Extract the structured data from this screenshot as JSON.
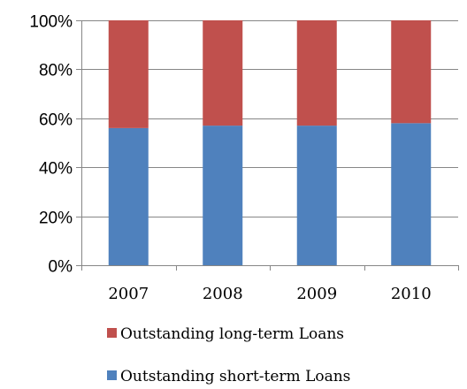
{
  "chart_data": {
    "type": "bar",
    "stacked": true,
    "percent_stacked": true,
    "categories": [
      "2007",
      "2008",
      "2009",
      "2010"
    ],
    "series": [
      {
        "name": "Outstanding short-term Loans",
        "values": [
          56,
          57,
          57,
          58
        ],
        "color": "#4f81bd"
      },
      {
        "name": "Outstanding long-term Loans",
        "values": [
          44,
          43,
          43,
          42
        ],
        "color": "#c0504d"
      }
    ],
    "y_ticks": [
      "0%",
      "20%",
      "40%",
      "60%",
      "80%",
      "100%"
    ],
    "ylim": [
      0,
      100
    ],
    "grid": true,
    "legend_position": "bottom"
  }
}
